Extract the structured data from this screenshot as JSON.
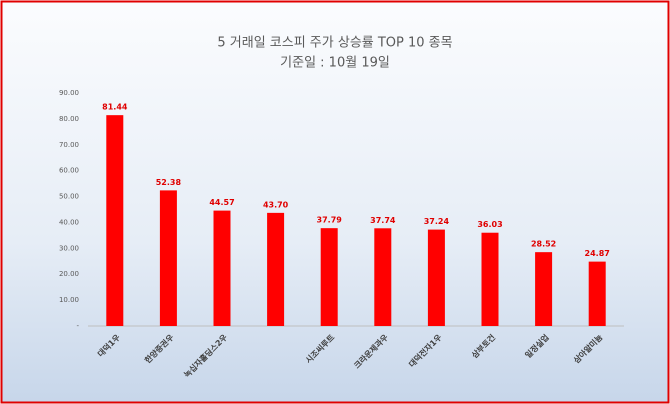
{
  "chart_data": {
    "type": "bar",
    "title": "5 거래일 코스피 주가 상승률 TOP 10 종목",
    "subtitle": "기준일 : 10월 19일",
    "categories": [
      "대덕1우",
      "한양증권우",
      "녹십자홀딩스2우",
      null,
      "시조씨루트",
      "크라운제과우",
      "대덕전자1우",
      "삼부토건",
      "일정실업",
      "삼아알미늄"
    ],
    "values": [
      81.44,
      52.38,
      44.57,
      43.7,
      37.79,
      37.74,
      37.24,
      36.03,
      28.52,
      24.87
    ],
    "value_labels": [
      "81.44",
      "52.38",
      "44.57",
      "43.70",
      "37.79",
      "37.74",
      "37.24",
      "36.03",
      "28.52",
      "24.87"
    ],
    "color": "#ff0000",
    "ylim": [
      0,
      90
    ],
    "yticks": [
      {
        "value": 0,
        "label": "-"
      },
      {
        "value": 10,
        "label": "10.00"
      },
      {
        "value": 20,
        "label": "20.00"
      },
      {
        "value": 30,
        "label": "30.00"
      },
      {
        "value": 40,
        "label": "40.00"
      },
      {
        "value": 50,
        "label": "50.00"
      },
      {
        "value": 60,
        "label": "60.00"
      },
      {
        "value": 70,
        "label": "70.00"
      },
      {
        "value": 80,
        "label": "80.00"
      },
      {
        "value": 90,
        "label": "90.00"
      }
    ],
    "grid": false
  }
}
